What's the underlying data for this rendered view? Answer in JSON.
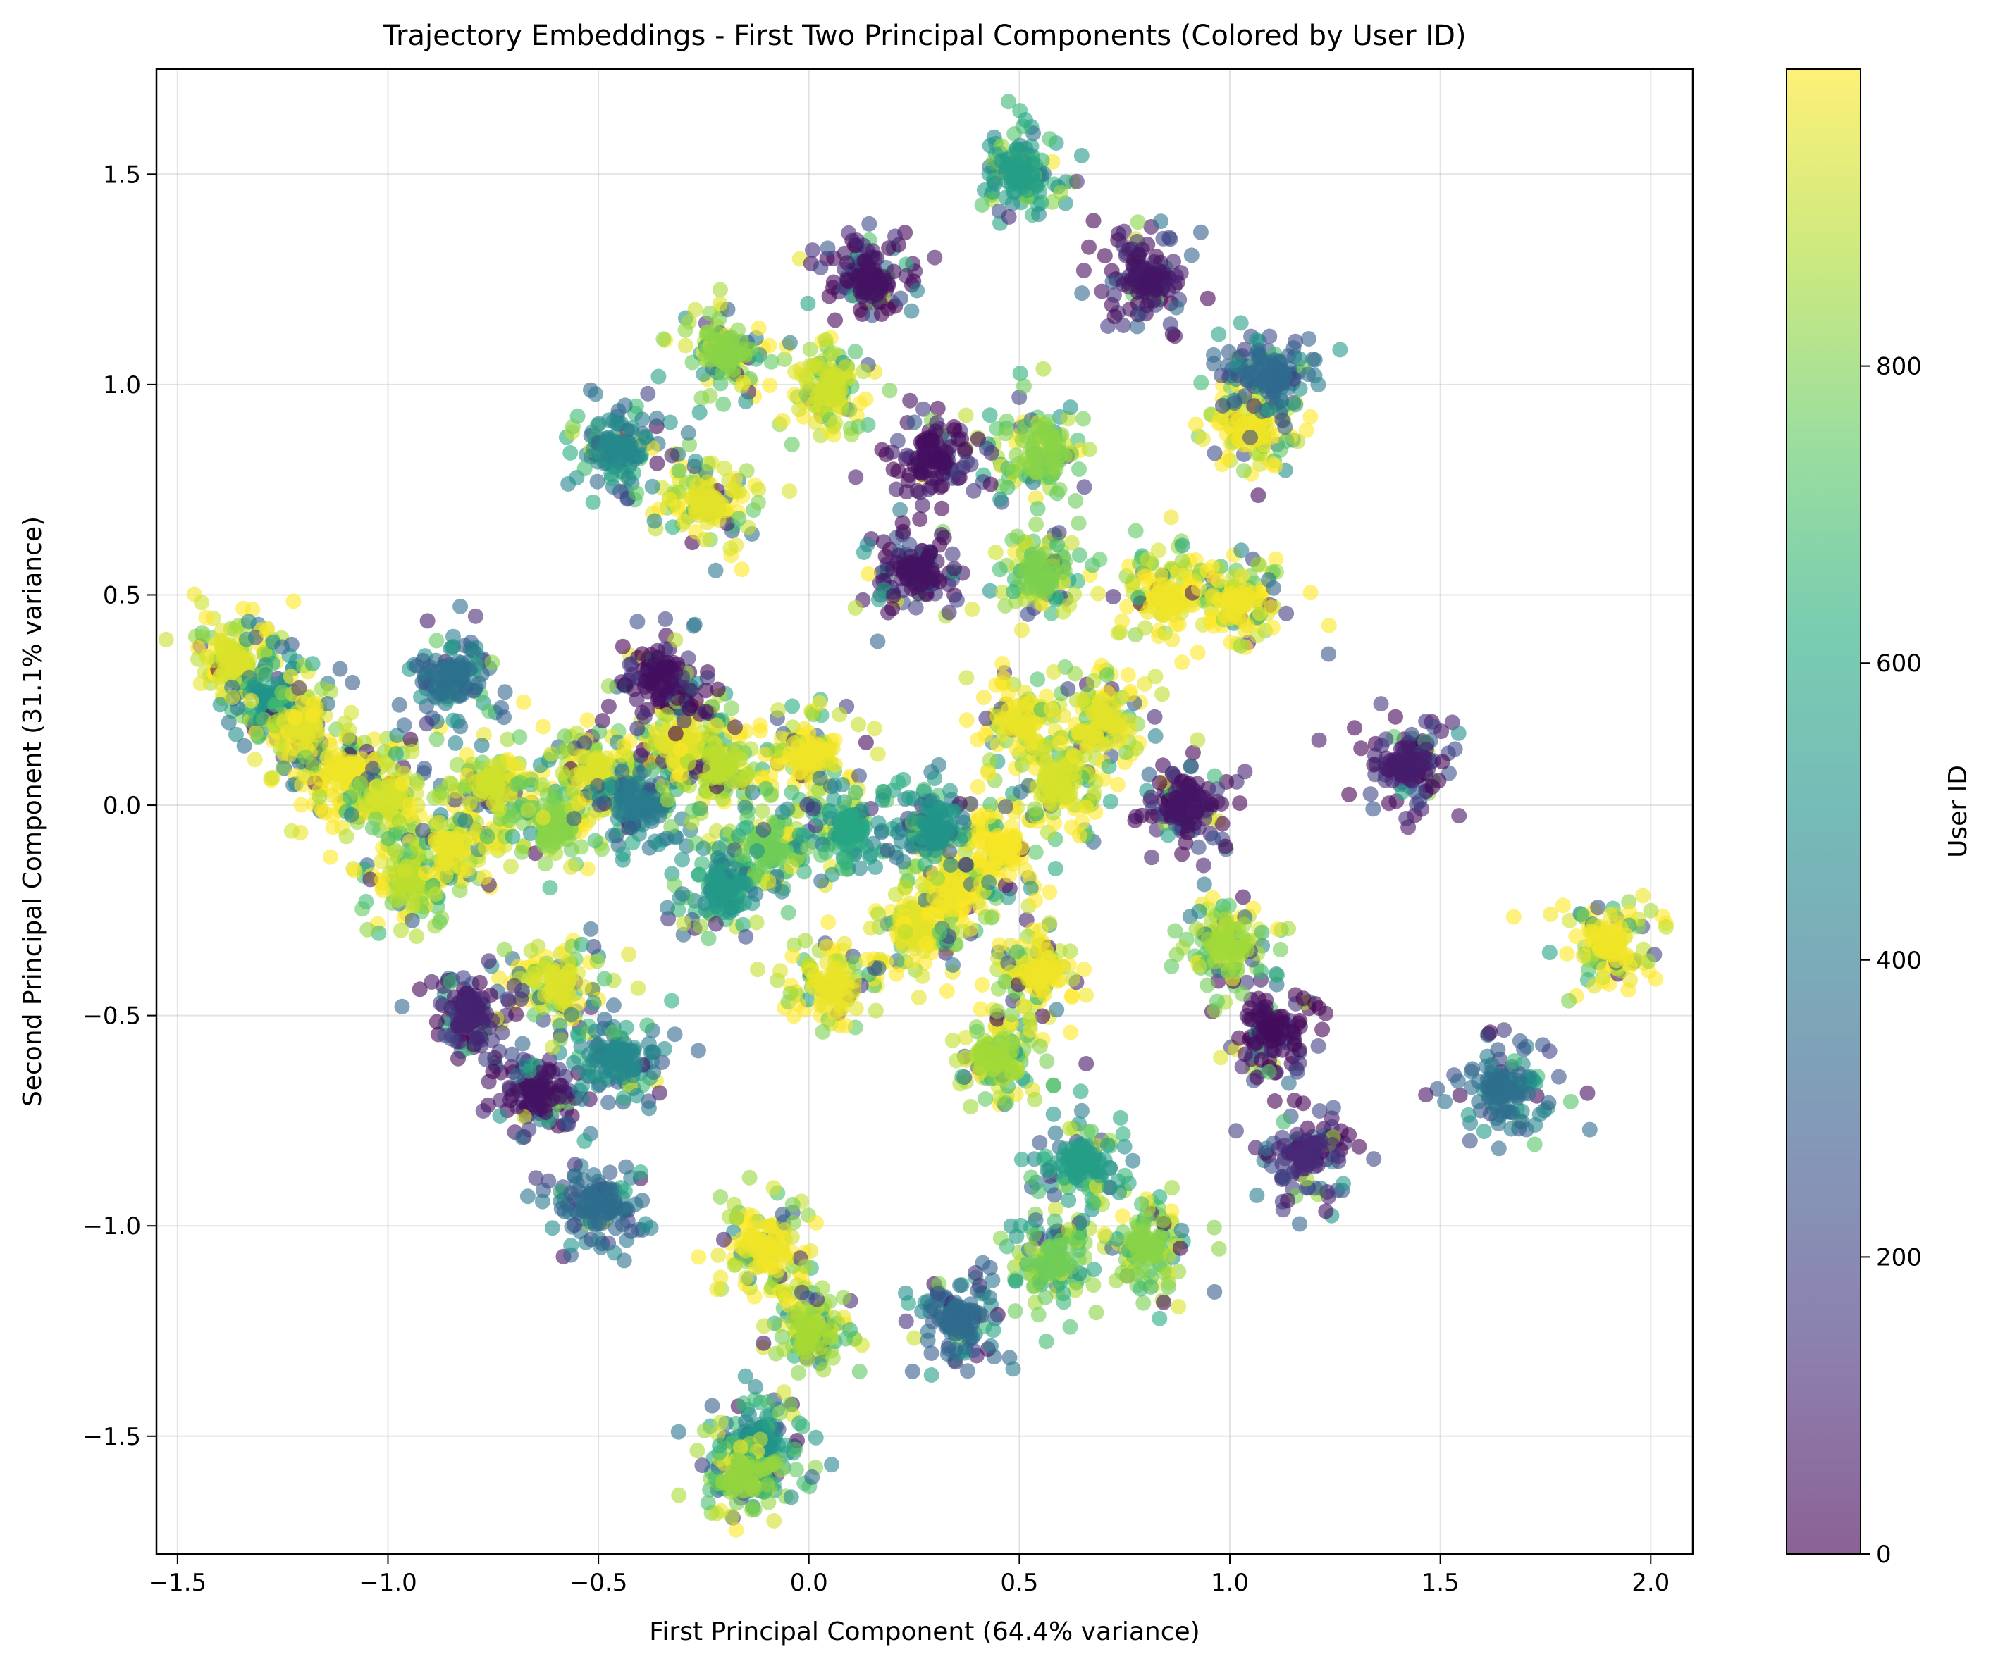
{
  "chart_data": {
    "type": "scatter",
    "title": "Trajectory Embeddings - First Two Principal Components (Colored by User ID)",
    "xlabel": "First Principal Component (64.4% variance)",
    "ylabel": "Second Principal Component (31.1% variance)",
    "xlim": [
      -1.55,
      2.1
    ],
    "ylim": [
      -1.78,
      1.75
    ],
    "xticks": [
      -1.5,
      -1.0,
      -0.5,
      0.0,
      0.5,
      1.0,
      1.5,
      2.0
    ],
    "xtick_labels": [
      "−1.5",
      "−1.0",
      "−0.5",
      "0.0",
      "0.5",
      "1.0",
      "1.5",
      "2.0"
    ],
    "yticks": [
      -1.5,
      -1.0,
      -0.5,
      0.0,
      0.5,
      1.0,
      1.5
    ],
    "ytick_labels": [
      "−1.5",
      "−1.0",
      "−0.5",
      "0.0",
      "0.5",
      "1.0",
      "1.5"
    ],
    "grid": true,
    "colormap": "viridis",
    "colorbar": {
      "label": "User ID",
      "range": [
        0,
        1000
      ],
      "ticks": [
        0,
        200,
        400,
        600,
        800
      ],
      "tick_labels": [
        "0",
        "200",
        "400",
        "600",
        "800"
      ]
    },
    "point_alpha": 0.6,
    "clusters": [
      {
        "x": -1.37,
        "y": 0.34,
        "user_id": 950
      },
      {
        "x": -1.28,
        "y": 0.25,
        "user_id": 520
      },
      {
        "x": -1.2,
        "y": 0.18,
        "user_id": 960
      },
      {
        "x": -1.1,
        "y": 0.08,
        "user_id": 980
      },
      {
        "x": -1.0,
        "y": 0.02,
        "user_id": 940
      },
      {
        "x": -0.95,
        "y": -0.18,
        "user_id": 900
      },
      {
        "x": -0.85,
        "y": -0.1,
        "user_id": 970
      },
      {
        "x": -0.75,
        "y": 0.05,
        "user_id": 930
      },
      {
        "x": -0.6,
        "y": -0.05,
        "user_id": 820
      },
      {
        "x": -0.5,
        "y": 0.08,
        "user_id": 950
      },
      {
        "x": -0.4,
        "y": 0.0,
        "user_id": 420
      },
      {
        "x": -0.3,
        "y": 0.15,
        "user_id": 960
      },
      {
        "x": -0.2,
        "y": 0.1,
        "user_id": 900
      },
      {
        "x": -0.1,
        "y": -0.1,
        "user_id": 780
      },
      {
        "x": 0.0,
        "y": 0.12,
        "user_id": 980
      },
      {
        "x": 0.1,
        "y": -0.05,
        "user_id": 600
      },
      {
        "x": 0.25,
        "y": -0.3,
        "user_id": 960
      },
      {
        "x": 0.35,
        "y": -0.2,
        "user_id": 980
      },
      {
        "x": 0.45,
        "y": -0.1,
        "user_id": 990
      },
      {
        "x": 0.5,
        "y": 0.2,
        "user_id": 970
      },
      {
        "x": 0.6,
        "y": 0.05,
        "user_id": 940
      },
      {
        "x": 0.7,
        "y": 0.2,
        "user_id": 960
      },
      {
        "x": 0.85,
        "y": 0.5,
        "user_id": 980
      },
      {
        "x": 0.55,
        "y": 0.55,
        "user_id": 800
      },
      {
        "x": 0.55,
        "y": 0.85,
        "user_id": 820
      },
      {
        "x": -0.25,
        "y": 0.72,
        "user_id": 960
      },
      {
        "x": -0.45,
        "y": 0.85,
        "user_id": 470
      },
      {
        "x": 0.05,
        "y": 1.0,
        "user_id": 930
      },
      {
        "x": -0.2,
        "y": 1.08,
        "user_id": 820
      },
      {
        "x": 0.5,
        "y": 1.5,
        "user_id": 560
      },
      {
        "x": 0.8,
        "y": 1.25,
        "user_id": 60
      },
      {
        "x": 0.15,
        "y": 1.25,
        "user_id": 50
      },
      {
        "x": 1.05,
        "y": 0.9,
        "user_id": 980
      },
      {
        "x": 1.1,
        "y": 1.02,
        "user_id": 350
      },
      {
        "x": 1.02,
        "y": 0.48,
        "user_id": 980
      },
      {
        "x": 0.3,
        "y": 0.82,
        "user_id": 40
      },
      {
        "x": 1.42,
        "y": 0.1,
        "user_id": 80
      },
      {
        "x": 1.9,
        "y": -0.33,
        "user_id": 980
      },
      {
        "x": 1.65,
        "y": -0.68,
        "user_id": 370
      },
      {
        "x": 1.1,
        "y": -0.54,
        "user_id": 30
      },
      {
        "x": 1.18,
        "y": -0.83,
        "user_id": 120
      },
      {
        "x": 1.0,
        "y": -0.33,
        "user_id": 860
      },
      {
        "x": 0.8,
        "y": -1.05,
        "user_id": 820
      },
      {
        "x": 0.58,
        "y": -1.08,
        "user_id": 780
      },
      {
        "x": 0.65,
        "y": -0.85,
        "user_id": 560
      },
      {
        "x": 0.45,
        "y": -0.6,
        "user_id": 860
      },
      {
        "x": 0.55,
        "y": -0.4,
        "user_id": 980
      },
      {
        "x": 0.35,
        "y": -1.22,
        "user_id": 350
      },
      {
        "x": -0.1,
        "y": -1.05,
        "user_id": 980
      },
      {
        "x": 0.0,
        "y": -1.25,
        "user_id": 870
      },
      {
        "x": -0.12,
        "y": -1.52,
        "user_id": 520
      },
      {
        "x": -0.15,
        "y": -1.6,
        "user_id": 840
      },
      {
        "x": -0.65,
        "y": -0.68,
        "user_id": 50
      },
      {
        "x": -0.6,
        "y": -0.43,
        "user_id": 950
      },
      {
        "x": -0.45,
        "y": -0.6,
        "user_id": 470
      },
      {
        "x": -0.5,
        "y": -0.95,
        "user_id": 360
      },
      {
        "x": 0.05,
        "y": -0.42,
        "user_id": 970
      },
      {
        "x": -0.2,
        "y": -0.2,
        "user_id": 540
      },
      {
        "x": 0.25,
        "y": 0.55,
        "user_id": 50
      },
      {
        "x": 0.9,
        "y": 0.0,
        "user_id": 60
      },
      {
        "x": -0.35,
        "y": 0.3,
        "user_id": 40
      },
      {
        "x": -0.8,
        "y": -0.5,
        "user_id": 100
      },
      {
        "x": 0.3,
        "y": -0.05,
        "user_id": 520
      },
      {
        "x": -0.85,
        "y": 0.3,
        "user_id": 380
      }
    ]
  }
}
